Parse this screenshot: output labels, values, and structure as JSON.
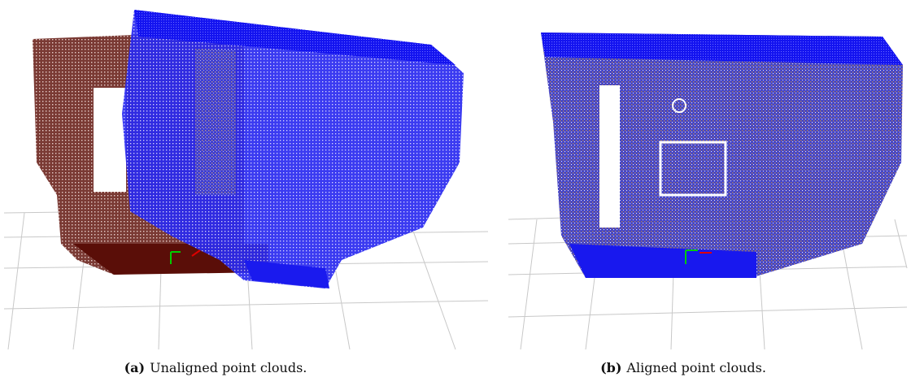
{
  "figures": [
    {
      "label": "(a)",
      "caption": "Unaligned point clouds."
    },
    {
      "label": "(b)",
      "caption": "Aligned point clouds."
    }
  ]
}
